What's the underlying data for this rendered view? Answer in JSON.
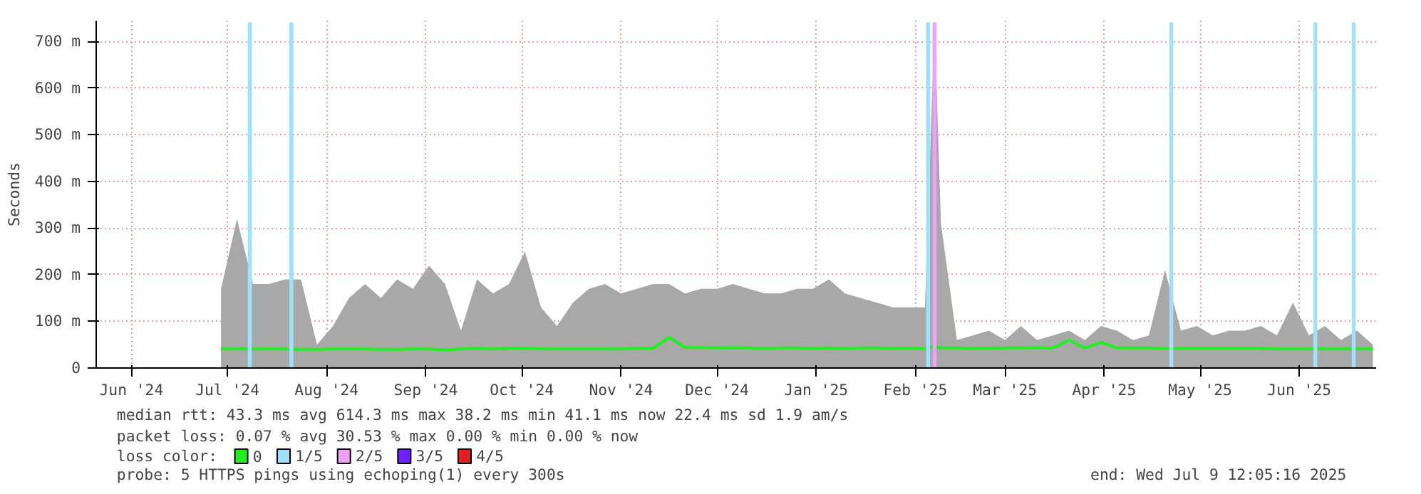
{
  "chart_data": {
    "type": "area",
    "ylabel": "Seconds",
    "x": [
      "2024-07-13",
      "2024-07-18",
      "2024-07-23",
      "2024-07-28",
      "2024-08-02",
      "2024-08-07",
      "2024-08-12",
      "2024-08-17",
      "2024-08-22",
      "2024-08-27",
      "2024-09-01",
      "2024-09-06",
      "2024-09-11",
      "2024-09-16",
      "2024-09-21",
      "2024-09-26",
      "2024-10-01",
      "2024-10-06",
      "2024-10-11",
      "2024-10-16",
      "2024-10-21",
      "2024-10-26",
      "2024-10-31",
      "2024-11-05",
      "2024-11-10",
      "2024-11-15",
      "2024-11-20",
      "2024-11-25",
      "2024-11-30",
      "2024-12-05",
      "2024-12-10",
      "2024-12-15",
      "2024-12-20",
      "2024-12-25",
      "2024-12-30",
      "2025-01-04",
      "2025-01-09",
      "2025-01-14",
      "2025-01-19",
      "2025-01-24",
      "2025-01-29",
      "2025-02-03",
      "2025-02-08",
      "2025-02-13",
      "2025-02-18",
      "2025-02-21",
      "2025-02-23",
      "2025-02-28",
      "2025-03-05",
      "2025-03-10",
      "2025-03-15",
      "2025-03-20",
      "2025-03-25",
      "2025-03-30",
      "2025-04-04",
      "2025-04-09",
      "2025-04-14",
      "2025-04-19",
      "2025-04-24",
      "2025-04-29",
      "2025-05-04",
      "2025-05-09",
      "2025-05-14",
      "2025-05-19",
      "2025-05-24",
      "2025-05-29",
      "2025-06-03",
      "2025-06-08",
      "2025-06-13",
      "2025-06-18",
      "2025-06-23",
      "2025-06-28",
      "2025-07-03",
      "2025-07-08"
    ],
    "series": [
      {
        "color": "#a8a8a8",
        "values": [
          170,
          320,
          180,
          180,
          190,
          190,
          50,
          90,
          150,
          180,
          150,
          190,
          170,
          220,
          180,
          80,
          190,
          160,
          180,
          250,
          130,
          90,
          140,
          170,
          180,
          160,
          170,
          180,
          180,
          160,
          170,
          170,
          180,
          170,
          160,
          160,
          170,
          170,
          190,
          160,
          150,
          140,
          130,
          130,
          130,
          740,
          310,
          60,
          70,
          80,
          60,
          90,
          60,
          70,
          80,
          60,
          90,
          80,
          60,
          70,
          210,
          80,
          90,
          70,
          80,
          80,
          90,
          70,
          140,
          70,
          90,
          60,
          80,
          50
        ]
      },
      {
        "type": "line",
        "name": "0",
        "color": "#20f020",
        "values": [
          41,
          41,
          41,
          41,
          41,
          40,
          40,
          41,
          41,
          41,
          40,
          40,
          41,
          41,
          39,
          41,
          42,
          41,
          42,
          43,
          41,
          41,
          41,
          41,
          41,
          41,
          42,
          42,
          66,
          44,
          44,
          43,
          44,
          43,
          42,
          43,
          43,
          42,
          43,
          42,
          43,
          43,
          42,
          42,
          42,
          45,
          43,
          43,
          42,
          42,
          43,
          43,
          44,
          43,
          60,
          43,
          55,
          43,
          43,
          43,
          42,
          42,
          42,
          42,
          42,
          42,
          42,
          41,
          41,
          41,
          41,
          41,
          41,
          41
        ]
      },
      {
        "type": "bar",
        "name": "1/5",
        "color": "#a0e0f8",
        "x": [
          "2024-07-22",
          "2024-08-04",
          "2025-02-19",
          "2025-05-06",
          "2025-06-20",
          "2025-07-02"
        ],
        "values": [
          740,
          740,
          740,
          740,
          740,
          740
        ]
      },
      {
        "type": "bar",
        "name": "2/5",
        "color": "#f0a0f8",
        "x": [
          "2025-02-21"
        ],
        "values": [
          740
        ]
      },
      {
        "type": "bar",
        "name": "3/5",
        "color": "#7020ff",
        "values": [
          null,
          null,
          null,
          null,
          null,
          null,
          null,
          null,
          null,
          null,
          null,
          null,
          null,
          null,
          null,
          null,
          null,
          null,
          null,
          null,
          null,
          null,
          null,
          null,
          null,
          null,
          null,
          null,
          null,
          null,
          null,
          null,
          null,
          null,
          null,
          null,
          null,
          null,
          null,
          null,
          null,
          null,
          null,
          null,
          null,
          null,
          null,
          null,
          null,
          null,
          null,
          null,
          null,
          null,
          null,
          null,
          null,
          null,
          null,
          null,
          null,
          null,
          null,
          null,
          null,
          null,
          null,
          null,
          null,
          null,
          null,
          null,
          null,
          null
        ]
      },
      {
        "type": "bar",
        "name": "4/5",
        "color": "#e02020",
        "values": [
          null,
          null,
          null,
          null,
          null,
          null,
          null,
          null,
          null,
          null,
          null,
          null,
          null,
          null,
          null,
          null,
          null,
          null,
          null,
          null,
          null,
          null,
          null,
          null,
          null,
          null,
          null,
          null,
          null,
          null,
          null,
          null,
          null,
          null,
          null,
          null,
          null,
          null,
          null,
          null,
          null,
          null,
          null,
          null,
          null,
          null,
          null,
          null,
          null,
          null,
          null,
          null,
          null,
          null,
          null,
          null,
          null,
          null,
          null,
          null,
          null,
          null,
          null,
          null,
          null,
          null,
          null,
          null,
          null,
          null,
          null,
          null,
          null,
          null
        ]
      }
    ],
    "xlim": [
      "2024-06-04",
      "2025-07-09"
    ],
    "xticks": [
      {
        "value": "2024-06-15",
        "label": "Jun '24"
      },
      {
        "value": "2024-07-15",
        "label": "Jul '24"
      },
      {
        "value": "2024-08-15",
        "label": "Aug '24"
      },
      {
        "value": "2024-09-15",
        "label": "Sep '24"
      },
      {
        "value": "2024-10-15",
        "label": "Oct '24"
      },
      {
        "value": "2024-11-15",
        "label": "Nov '24"
      },
      {
        "value": "2024-12-15",
        "label": "Dec '24"
      },
      {
        "value": "2025-01-15",
        "label": "Jan '25"
      },
      {
        "value": "2025-02-15",
        "label": "Feb '25"
      },
      {
        "value": "2025-03-15",
        "label": "Mar '25"
      },
      {
        "value": "2025-04-15",
        "label": "Apr '25"
      },
      {
        "value": "2025-05-15",
        "label": "May '25"
      },
      {
        "value": "2025-06-15",
        "label": "Jun '25"
      }
    ],
    "ylim": [
      0,
      745
    ],
    "yticks": [
      0,
      {
        "value": 100,
        "label": "100 m"
      },
      {
        "value": 200,
        "label": "200 m"
      },
      {
        "value": 300,
        "label": "300 m"
      },
      {
        "value": 400,
        "label": "400 m"
      },
      {
        "value": 500,
        "label": "500 m"
      },
      {
        "value": 600,
        "label": "600 m"
      },
      {
        "value": 700,
        "label": "700 m"
      }
    ],
    "grid": true,
    "legend": "bottom",
    "legend_title": "loss color:",
    "annotations": [
      "median rtt:  43.3 ms avg  614.3 ms max  38.2 ms min  41.1 ms now  22.4 ms sd  1.9   am/s",
      "packet loss: 0.07 % avg  30.53 % max  0.00 % min  0.00 % now",
      "probe:       5 HTTPS pings using echoping(1) every 300s",
      "end: Wed Jul  9 12:05:16 2025"
    ]
  }
}
